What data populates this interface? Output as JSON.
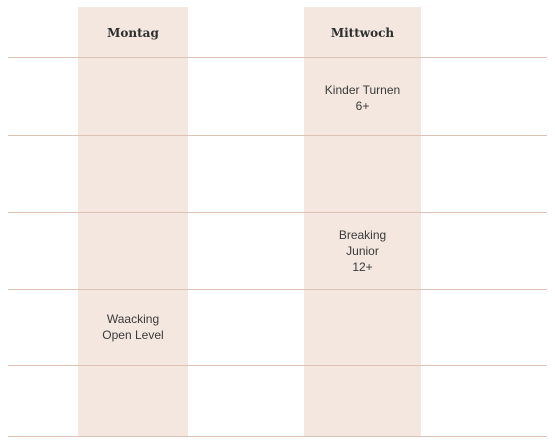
{
  "schedule": {
    "days": {
      "monday": "Montag",
      "wednesday": "Mittwoch"
    },
    "classes": {
      "kinder_turnen": [
        "Kinder Turnen",
        "6+"
      ],
      "breaking_junior": [
        "Breaking",
        "Junior",
        "12+"
      ],
      "waacking_open": [
        "Waacking",
        "Open Level"
      ]
    }
  },
  "colors": {
    "column_background": "#f3e7df",
    "row_line": "#dcc3b5"
  }
}
